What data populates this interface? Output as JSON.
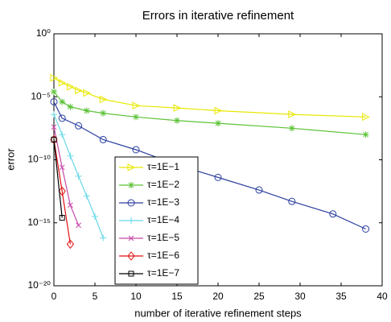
{
  "chart_data": {
    "type": "line",
    "title": "Errors in iterative refinement",
    "xlabel": "number of iterative refinement steps",
    "ylabel": "error",
    "xlim": [
      0,
      40
    ],
    "xticks": [
      0,
      5,
      10,
      15,
      20,
      25,
      30,
      35,
      40
    ],
    "ylim": [
      1e-20,
      1
    ],
    "ylog": true,
    "yticks": [
      {
        "value": 1e-20,
        "label": "10⁻²⁰"
      },
      {
        "value": 1e-15,
        "label": "10⁻¹⁵"
      },
      {
        "value": 1e-10,
        "label": "10⁻¹⁰"
      },
      {
        "value": 1e-05,
        "label": "10⁻⁵"
      },
      {
        "value": 1,
        "label": "10⁰"
      }
    ],
    "grid": false,
    "legend": "lower left",
    "series": [
      {
        "name": "τ=1E−1",
        "color": "#e8e800",
        "marker": "triangle-right",
        "x": [
          0,
          1,
          2,
          3,
          4,
          6,
          10,
          15,
          20,
          29,
          38
        ],
        "values": [
          0.00032,
          0.00013,
          6.3e-05,
          3.2e-05,
          2e-05,
          6.3e-06,
          2e-06,
          1.3e-06,
          7.9e-07,
          4e-07,
          2.5e-07
        ]
      },
      {
        "name": "τ=1E−2",
        "color": "#5cc236",
        "marker": "star",
        "x": [
          0,
          1,
          2,
          4,
          6,
          10,
          15,
          20,
          29,
          38
        ],
        "values": [
          2.5e-05,
          4e-06,
          1.6e-06,
          7.9e-07,
          5e-07,
          2.5e-07,
          1.3e-07,
          7.9e-08,
          3.2e-08,
          1e-08
        ]
      },
      {
        "name": "τ=1E−3",
        "color": "#2a3f9e",
        "marker": "circle",
        "x": [
          0,
          1,
          3,
          6,
          10,
          15,
          20,
          25,
          29,
          34,
          38
        ],
        "values": [
          4e-06,
          2e-07,
          5e-08,
          4e-09,
          6.3e-10,
          4e-11,
          4e-12,
          4e-13,
          5e-14,
          5e-15,
          3.2e-16
        ]
      },
      {
        "name": "τ=1E−4",
        "color": "#66d8e8",
        "marker": "plus",
        "x": [
          0,
          1,
          2,
          3,
          4,
          5,
          6
        ],
        "values": [
          4e-07,
          1e-08,
          2e-10,
          5e-12,
          1.3e-13,
          3.2e-15,
          6.3e-17
        ]
      },
      {
        "name": "τ=1E−5",
        "color": "#c848a8",
        "marker": "x",
        "x": [
          0,
          1,
          2,
          3
        ],
        "values": [
          4e-08,
          2.5e-11,
          2.5e-14,
          6.3e-16
        ]
      },
      {
        "name": "τ=1E−6",
        "color": "#e01010",
        "marker": "diamond",
        "x": [
          0,
          1,
          2
        ],
        "values": [
          4e-09,
          3.2e-13,
          2e-17
        ]
      },
      {
        "name": "τ=1E−7",
        "color": "#000000",
        "marker": "square",
        "x": [
          0,
          1
        ],
        "values": [
          4e-09,
          2.5e-15
        ]
      }
    ]
  }
}
